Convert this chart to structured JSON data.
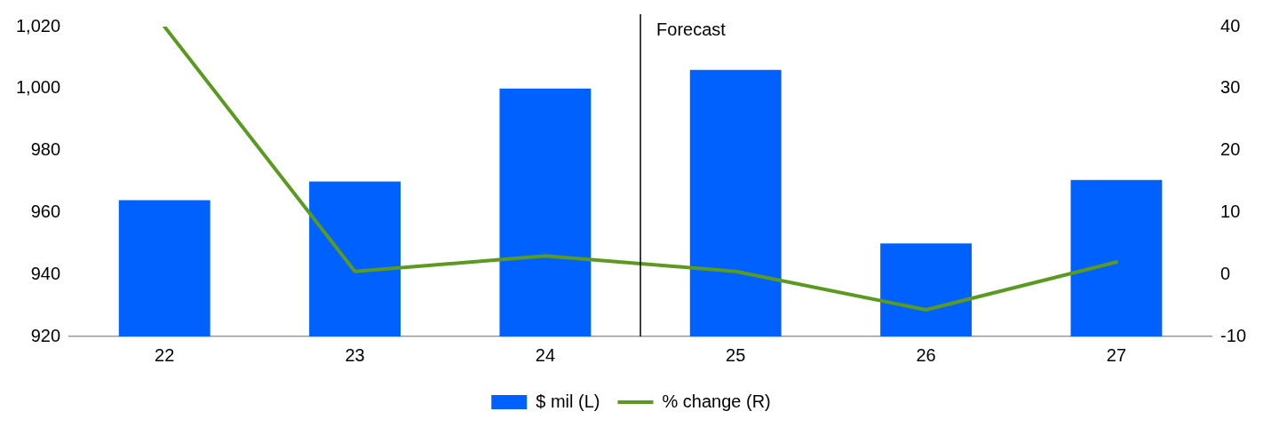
{
  "chart_data": {
    "type": "bar",
    "categories": [
      "22",
      "23",
      "24",
      "25",
      "26",
      "27"
    ],
    "series": [
      {
        "name": "$ mil (L)",
        "color": "#0061ff",
        "values": [
          964,
          970,
          1000,
          1006,
          950,
          970.5
        ]
      },
      {
        "name": "% change (R)",
        "type": "line",
        "axis": "y2",
        "color": "#5a9a1f",
        "values": [
          40,
          0.5,
          3,
          0.5,
          -5.7,
          2
        ]
      }
    ],
    "ylim": [
      920,
      1020
    ],
    "yticks": [
      920,
      940,
      960,
      980,
      {
        "value": 1000,
        "label": "1,000"
      },
      {
        "value": 1020,
        "label": "1,020"
      }
    ],
    "y2lim": [
      -10,
      40
    ],
    "y2ticks": [
      -10,
      0,
      10,
      20,
      30,
      40
    ],
    "annotations": [
      "Forecast"
    ],
    "legend": "bottom",
    "grid": false,
    "marker": "none"
  }
}
